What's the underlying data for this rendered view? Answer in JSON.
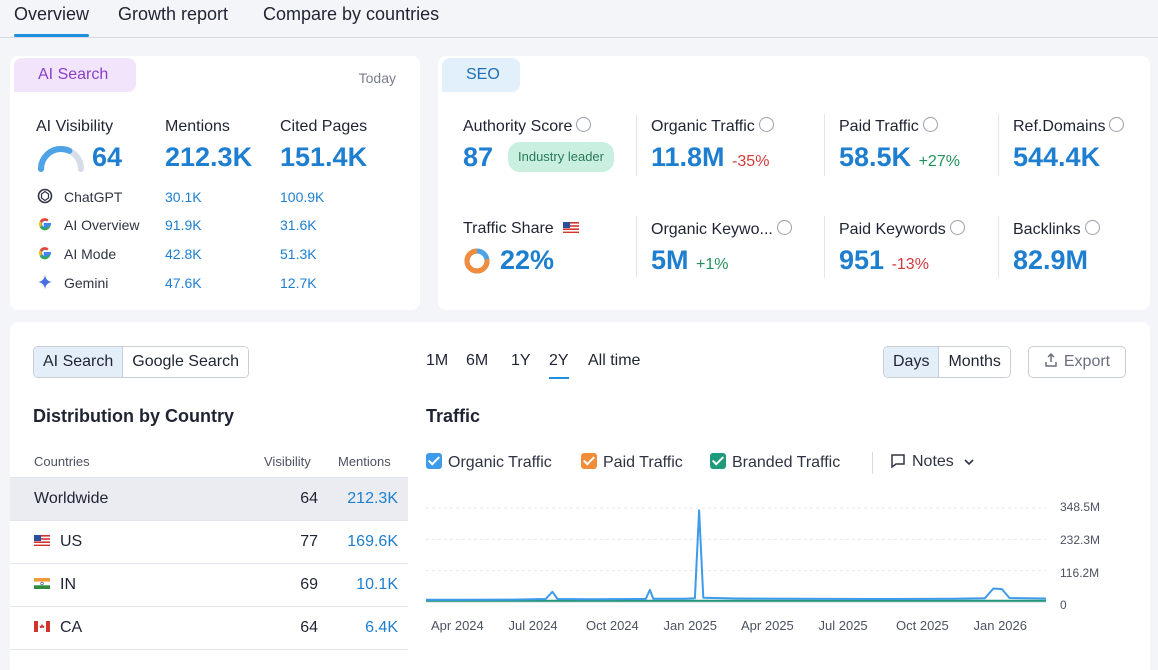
{
  "tabs": [
    {
      "label": "Overview",
      "active": true
    },
    {
      "label": "Growth report",
      "active": false
    },
    {
      "label": "Compare by countries",
      "active": false
    }
  ],
  "ai_search": {
    "pill": "AI Search",
    "today": "Today",
    "visibility_label": "AI Visibility",
    "visibility_value": "64",
    "visibility_level": 0.64,
    "mentions_label": "Mentions",
    "mentions_value": "212.3K",
    "cited_label": "Cited Pages",
    "cited_value": "151.4K",
    "platforms": [
      {
        "name": "ChatGPT",
        "icon": "chatgpt-icon",
        "mentions": "30.1K",
        "cited": "100.9K"
      },
      {
        "name": "AI Overview",
        "icon": "google-icon",
        "mentions": "91.9K",
        "cited": "31.6K"
      },
      {
        "name": "AI Mode",
        "icon": "google-icon",
        "mentions": "42.8K",
        "cited": "51.3K"
      },
      {
        "name": "Gemini",
        "icon": "gemini-icon",
        "mentions": "47.6K",
        "cited": "12.7K"
      }
    ]
  },
  "seo": {
    "pill": "SEO",
    "authority_label": "Authority Score",
    "authority_value": "87",
    "authority_badge": "Industry leader",
    "organic_traffic_label": "Organic Traffic",
    "organic_traffic_value": "11.8M",
    "organic_traffic_delta": "-35%",
    "paid_traffic_label": "Paid Traffic",
    "paid_traffic_value": "58.5K",
    "paid_traffic_delta": "+27%",
    "ref_domains_label": "Ref.Domains",
    "ref_domains_value": "544.4K",
    "traffic_share_label": "Traffic Share",
    "traffic_share_value": "22%",
    "traffic_share_level": 0.22,
    "organic_keywords_label": "Organic Keywo...",
    "organic_keywords_value": "5M",
    "organic_keywords_delta": "+1%",
    "paid_keywords_label": "Paid Keywords",
    "paid_keywords_value": "951",
    "paid_keywords_delta": "-13%",
    "backlinks_label": "Backlinks",
    "backlinks_value": "82.9M"
  },
  "bottom": {
    "search_toggle": [
      {
        "label": "AI Search",
        "active": true
      },
      {
        "label": "Google Search",
        "active": false
      }
    ],
    "ranges": [
      {
        "label": "1M",
        "active": false
      },
      {
        "label": "6M",
        "active": false
      },
      {
        "label": "1Y",
        "active": false
      },
      {
        "label": "2Y",
        "active": true
      },
      {
        "label": "All time",
        "active": false
      }
    ],
    "granularity": [
      {
        "label": "Days",
        "active": true
      },
      {
        "label": "Months",
        "active": false
      }
    ],
    "export_label": "Export",
    "distribution_title": "Distribution by Country",
    "columns": {
      "country": "Countries",
      "visibility": "Visibility",
      "mentions": "Mentions"
    },
    "countries": [
      {
        "name": "Worldwide",
        "flag": "",
        "visibility": "64",
        "mentions": "212.3K"
      },
      {
        "name": "US",
        "flag": "us-flag-icon",
        "visibility": "77",
        "mentions": "169.6K"
      },
      {
        "name": "IN",
        "flag": "in-flag-icon",
        "visibility": "69",
        "mentions": "10.1K"
      },
      {
        "name": "CA",
        "flag": "ca-flag-icon",
        "visibility": "64",
        "mentions": "6.4K"
      }
    ],
    "traffic_title": "Traffic",
    "legend": [
      {
        "label": "Organic Traffic",
        "color": "#3d9be9"
      },
      {
        "label": "Paid Traffic",
        "color": "#f08c3a"
      },
      {
        "label": "Branded Traffic",
        "color": "#1f9a7a"
      }
    ],
    "notes_label": "Notes"
  },
  "chart_data": {
    "type": "line",
    "title": "Traffic",
    "y_ticks": [
      "348.5M",
      "232.3M",
      "116.2M",
      "0"
    ],
    "ylim": [
      0,
      348.5
    ],
    "x_ticks": [
      "Apr 2024",
      "Jul 2024",
      "Oct 2024",
      "Jan 2025",
      "Apr 2025",
      "Jul 2025",
      "Oct 2025",
      "Jan 2026"
    ],
    "x_range": [
      "2024-02-20",
      "2026-02-20"
    ],
    "series": [
      {
        "name": "Organic Traffic",
        "color": "#3d9be9",
        "points": [
          [
            "2024-02-20",
            8
          ],
          [
            "2024-04-01",
            8
          ],
          [
            "2024-06-01",
            9
          ],
          [
            "2024-07-10",
            11
          ],
          [
            "2024-07-18",
            38
          ],
          [
            "2024-07-24",
            11
          ],
          [
            "2024-09-01",
            10
          ],
          [
            "2024-11-05",
            11
          ],
          [
            "2024-11-10",
            45
          ],
          [
            "2024-11-14",
            12
          ],
          [
            "2024-12-20",
            12
          ],
          [
            "2025-01-02",
            14
          ],
          [
            "2025-01-07",
            340
          ],
          [
            "2025-01-12",
            16
          ],
          [
            "2025-02-20",
            13
          ],
          [
            "2025-05-01",
            12
          ],
          [
            "2025-08-01",
            11
          ],
          [
            "2025-11-01",
            12
          ],
          [
            "2025-12-10",
            14
          ],
          [
            "2025-12-20",
            50
          ],
          [
            "2025-12-30",
            48
          ],
          [
            "2026-01-08",
            15
          ],
          [
            "2026-02-20",
            13
          ]
        ]
      },
      {
        "name": "Branded Traffic",
        "color": "#1f9a7a",
        "points": [
          [
            "2024-02-20",
            5
          ],
          [
            "2026-02-20",
            5
          ]
        ]
      }
    ]
  }
}
